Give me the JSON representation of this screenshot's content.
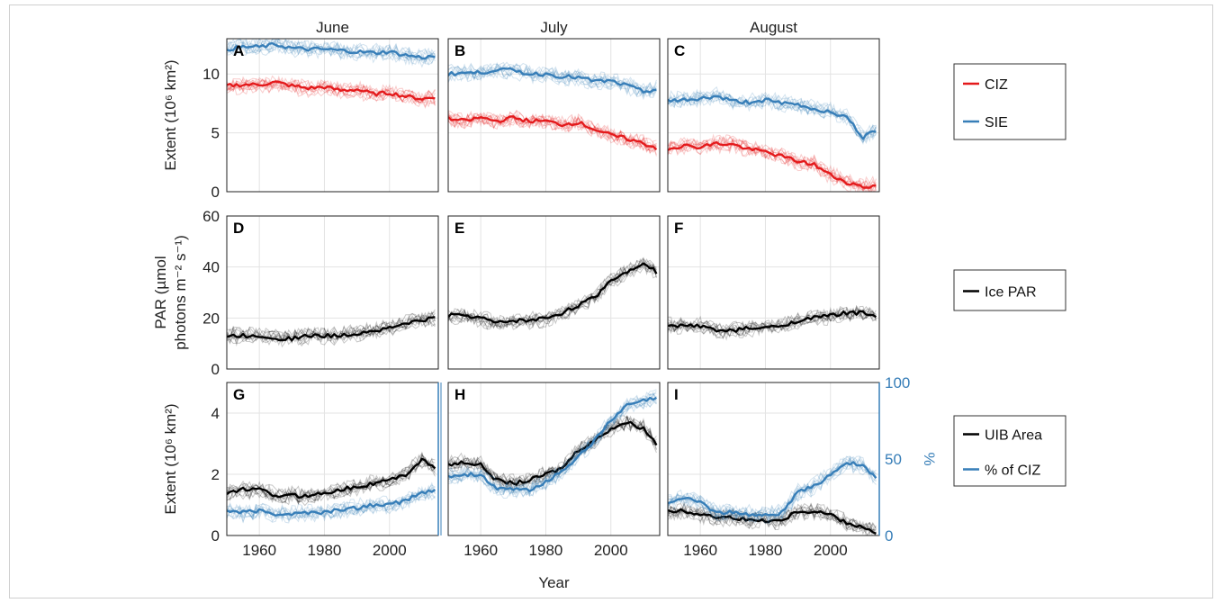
{
  "chart_data": {
    "type": "line",
    "columns": [
      "June",
      "July",
      "August"
    ],
    "xlabel": "Year",
    "xticks": [
      1960,
      1980,
      2000
    ],
    "xlim": [
      1950,
      2015
    ],
    "grid": true,
    "rows": [
      {
        "ylabel": [
          "Extent (10⁶ km²)"
        ],
        "ylim": [
          0,
          13
        ],
        "yticks": [
          0,
          5,
          10
        ],
        "legend": [
          {
            "label": "CIZ",
            "color": "#e41a1c"
          },
          {
            "label": "SIE",
            "color": "#377eb8"
          }
        ]
      },
      {
        "ylabel": [
          "PAR (µmol",
          "photons m⁻² s⁻¹)"
        ],
        "ylim": [
          0,
          60
        ],
        "yticks": [
          0,
          20,
          40,
          60
        ],
        "legend": [
          {
            "label": "Ice PAR",
            "color": "#000000"
          }
        ]
      },
      {
        "ylabel": [
          "Extent (10⁶ km²)"
        ],
        "ylim": [
          0,
          5
        ],
        "yticks": [
          0,
          2,
          4
        ],
        "ylabel_right": "%",
        "ylim_right": [
          0,
          100
        ],
        "yticks_right": [
          0,
          50,
          100
        ],
        "legend": [
          {
            "label": "UIB Area",
            "color": "#000000"
          },
          {
            "label": "% of CIZ",
            "color": "#377eb8"
          }
        ]
      }
    ],
    "panels": [
      {
        "label": "A",
        "row": 0,
        "col": 0,
        "series": [
          {
            "name": "CIZ",
            "color": "#e41a1c",
            "x": [
              1950,
              1955,
              1960,
              1965,
              1970,
              1975,
              1980,
              1985,
              1990,
              1995,
              2000,
              2005,
              2010,
              2014
            ],
            "y": [
              9.0,
              9.1,
              9.1,
              9.3,
              9.0,
              8.8,
              8.9,
              8.6,
              8.7,
              8.3,
              8.4,
              8.1,
              7.9,
              8.0
            ]
          },
          {
            "name": "SIE",
            "color": "#377eb8",
            "x": [
              1950,
              1955,
              1960,
              1965,
              1970,
              1975,
              1980,
              1985,
              1990,
              1995,
              2000,
              2005,
              2010,
              2014
            ],
            "y": [
              12.1,
              12.3,
              12.3,
              12.5,
              12.2,
              12.1,
              12.1,
              12.0,
              11.9,
              11.8,
              11.9,
              11.6,
              11.4,
              11.5
            ]
          }
        ]
      },
      {
        "label": "B",
        "row": 0,
        "col": 1,
        "series": [
          {
            "name": "CIZ",
            "color": "#e41a1c",
            "x": [
              1950,
              1955,
              1960,
              1965,
              1970,
              1975,
              1980,
              1985,
              1990,
              1995,
              2000,
              2005,
              2010,
              2014
            ],
            "y": [
              6.2,
              6.0,
              6.3,
              6.0,
              6.3,
              6.0,
              6.0,
              5.7,
              5.9,
              5.3,
              4.8,
              4.5,
              4.1,
              3.7
            ]
          },
          {
            "name": "SIE",
            "color": "#377eb8",
            "x": [
              1950,
              1955,
              1960,
              1965,
              1970,
              1975,
              1980,
              1985,
              1990,
              1995,
              2000,
              2005,
              2010,
              2014
            ],
            "y": [
              10.0,
              10.1,
              10.1,
              10.4,
              10.3,
              10.0,
              10.0,
              9.8,
              9.7,
              9.4,
              9.4,
              9.0,
              8.5,
              8.7
            ]
          }
        ]
      },
      {
        "label": "C",
        "row": 0,
        "col": 2,
        "series": [
          {
            "name": "CIZ",
            "color": "#e41a1c",
            "x": [
              1950,
              1955,
              1960,
              1965,
              1970,
              1975,
              1980,
              1985,
              1990,
              1995,
              2000,
              2005,
              2010,
              2014
            ],
            "y": [
              3.7,
              3.9,
              3.8,
              4.1,
              4.0,
              3.6,
              3.4,
              3.0,
              2.6,
              2.3,
              1.4,
              0.8,
              0.4,
              0.5
            ]
          },
          {
            "name": "SIE",
            "color": "#377eb8",
            "x": [
              1950,
              1955,
              1960,
              1965,
              1970,
              1975,
              1980,
              1985,
              1990,
              1995,
              2000,
              2005,
              2010,
              2014
            ],
            "y": [
              7.7,
              7.8,
              7.9,
              8.1,
              7.7,
              7.6,
              7.8,
              7.5,
              7.4,
              7.0,
              6.8,
              6.3,
              4.6,
              5.2
            ]
          }
        ]
      },
      {
        "label": "D",
        "row": 1,
        "col": 0,
        "series": [
          {
            "name": "Ice PAR",
            "color": "#000000",
            "x": [
              1950,
              1955,
              1960,
              1965,
              1970,
              1975,
              1980,
              1985,
              1990,
              1995,
              2000,
              2005,
              2010,
              2014
            ],
            "y": [
              13,
              13,
              13,
              12,
              12,
              13,
              13,
              13,
              14,
              15,
              16,
              18,
              19,
              20
            ]
          }
        ]
      },
      {
        "label": "E",
        "row": 1,
        "col": 1,
        "series": [
          {
            "name": "Ice PAR",
            "color": "#000000",
            "x": [
              1950,
              1955,
              1960,
              1965,
              1970,
              1975,
              1980,
              1985,
              1990,
              1995,
              2000,
              2005,
              2010,
              2014
            ],
            "y": [
              21,
              21,
              20,
              18,
              19,
              19,
              20,
              22,
              25,
              28,
              35,
              38,
              42,
              38
            ]
          }
        ]
      },
      {
        "label": "F",
        "row": 1,
        "col": 2,
        "series": [
          {
            "name": "Ice PAR",
            "color": "#000000",
            "x": [
              1950,
              1955,
              1960,
              1965,
              1970,
              1975,
              1980,
              1985,
              1990,
              1995,
              2000,
              2005,
              2010,
              2014
            ],
            "y": [
              17,
              17,
              17,
              15,
              15,
              16,
              16,
              17,
              19,
              20,
              21,
              22,
              22,
              21
            ]
          }
        ]
      },
      {
        "label": "G",
        "row": 2,
        "col": 0,
        "series": [
          {
            "name": "UIB Area",
            "color": "#000000",
            "x": [
              1950,
              1955,
              1960,
              1965,
              1970,
              1975,
              1980,
              1985,
              1990,
              1995,
              2000,
              2005,
              2010,
              2014
            ],
            "y": [
              1.4,
              1.5,
              1.5,
              1.3,
              1.3,
              1.3,
              1.4,
              1.5,
              1.6,
              1.7,
              1.8,
              2.0,
              2.5,
              2.2
            ]
          },
          {
            "name": "% of CIZ",
            "color": "#377eb8",
            "axis": "right",
            "x": [
              1950,
              1955,
              1960,
              1965,
              1970,
              1975,
              1980,
              1985,
              1990,
              1995,
              2000,
              2005,
              2010,
              2014
            ],
            "y": [
              16,
              15,
              16,
              14,
              14,
              15,
              15,
              17,
              18,
              20,
              20,
              23,
              28,
              29
            ]
          }
        ]
      },
      {
        "label": "H",
        "row": 2,
        "col": 1,
        "series": [
          {
            "name": "UIB Area",
            "color": "#000000",
            "x": [
              1950,
              1955,
              1960,
              1965,
              1970,
              1975,
              1980,
              1985,
              1990,
              1995,
              2000,
              2005,
              2010,
              2014
            ],
            "y": [
              2.3,
              2.4,
              2.3,
              1.8,
              1.7,
              1.8,
              2.0,
              2.2,
              2.8,
              3.1,
              3.5,
              3.7,
              3.5,
              3.0
            ]
          },
          {
            "name": "% of CIZ",
            "color": "#377eb8",
            "axis": "right",
            "x": [
              1950,
              1955,
              1960,
              1965,
              1970,
              1975,
              1980,
              1985,
              1990,
              1995,
              2000,
              2005,
              2010,
              2014
            ],
            "y": [
              38,
              40,
              40,
              30,
              30,
              30,
              35,
              42,
              52,
              62,
              75,
              85,
              88,
              90
            ]
          }
        ]
      },
      {
        "label": "I",
        "row": 2,
        "col": 2,
        "series": [
          {
            "name": "UIB Area",
            "color": "#000000",
            "x": [
              1950,
              1955,
              1960,
              1965,
              1970,
              1975,
              1980,
              1985,
              1990,
              1995,
              2000,
              2005,
              2010,
              2014
            ],
            "y": [
              0.8,
              0.8,
              0.7,
              0.6,
              0.6,
              0.5,
              0.5,
              0.5,
              0.8,
              0.8,
              0.7,
              0.4,
              0.3,
              0.1
            ]
          },
          {
            "name": "% of CIZ",
            "color": "#377eb8",
            "axis": "right",
            "x": [
              1950,
              1955,
              1960,
              1965,
              1970,
              1975,
              1980,
              1985,
              1990,
              1995,
              2000,
              2005,
              2010,
              2014
            ],
            "y": [
              22,
              24,
              22,
              15,
              15,
              14,
              13,
              15,
              28,
              32,
              40,
              48,
              45,
              38
            ]
          }
        ]
      }
    ]
  }
}
